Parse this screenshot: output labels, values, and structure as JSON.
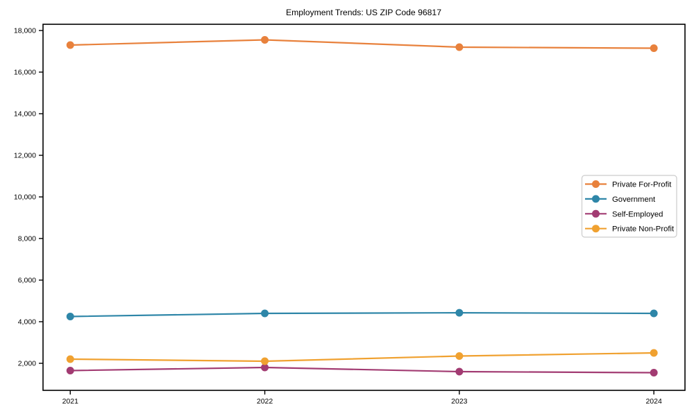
{
  "chart_data": {
    "type": "line",
    "title": "Employment Trends: US ZIP Code 96817",
    "x": [
      2021,
      2022,
      2023,
      2024
    ],
    "x_tick_labels": [
      "2021",
      "2022",
      "2023",
      "2024"
    ],
    "series": [
      {
        "name": "Private For-Profit",
        "color": "#E8813C",
        "values": [
          17300,
          17550,
          17200,
          17150
        ]
      },
      {
        "name": "Government",
        "color": "#2E86A8",
        "values": [
          4250,
          4400,
          4430,
          4400
        ]
      },
      {
        "name": "Self-Employed",
        "color": "#A23B72",
        "values": [
          1650,
          1800,
          1600,
          1550
        ]
      },
      {
        "name": "Private Non-Profit",
        "color": "#F0A130",
        "values": [
          2200,
          2100,
          2350,
          2500
        ]
      }
    ],
    "xlabel": "",
    "ylabel": "",
    "xlim": [
      2020.86,
      2024.16
    ],
    "ylim": [
      700,
      18300
    ],
    "y_ticks": [
      2000,
      4000,
      6000,
      8000,
      10000,
      12000,
      14000,
      16000,
      18000
    ],
    "y_tick_labels": [
      "2,000",
      "4,000",
      "6,000",
      "8,000",
      "10,000",
      "12,000",
      "14,000",
      "16,000",
      "18,000"
    ],
    "grid": false,
    "legend_position": "center-right",
    "marker": "circle",
    "axis_color": "#000000",
    "legend_border_color": "#cccccc",
    "legend_background": "#ffffff"
  }
}
